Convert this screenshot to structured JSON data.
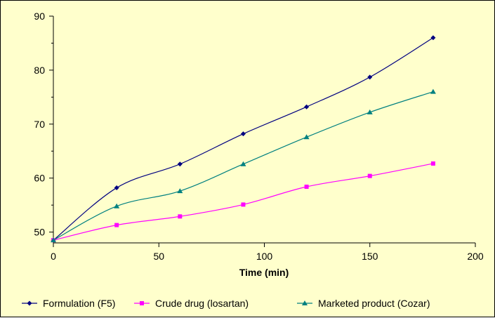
{
  "chart_data": {
    "type": "line",
    "title": "",
    "xlabel": "Time (min)",
    "ylabel": "",
    "xlim": [
      0,
      200
    ],
    "ylim": [
      48,
      90
    ],
    "x_ticks": [
      0,
      50,
      100,
      150,
      200
    ],
    "y_ticks": [
      50,
      60,
      70,
      80,
      90
    ],
    "x": [
      0,
      30,
      60,
      90,
      120,
      150,
      180
    ],
    "series": [
      {
        "name": "Formulation  (F5)",
        "color": "#000080",
        "marker": "diamond",
        "values": [
          48.5,
          58.2,
          62.6,
          68.2,
          73.2,
          78.7,
          86.0
        ]
      },
      {
        "name": "Crude drug (losartan)",
        "color": "#ff00ff",
        "marker": "square",
        "values": [
          48.5,
          51.3,
          52.9,
          55.1,
          58.4,
          60.4,
          62.7
        ]
      },
      {
        "name": "Marketed  product  (Cozar)",
        "color": "#008080",
        "marker": "triangle",
        "values": [
          48.5,
          54.8,
          57.6,
          62.6,
          67.6,
          72.2,
          76.0
        ]
      }
    ],
    "legend": "bottom"
  }
}
